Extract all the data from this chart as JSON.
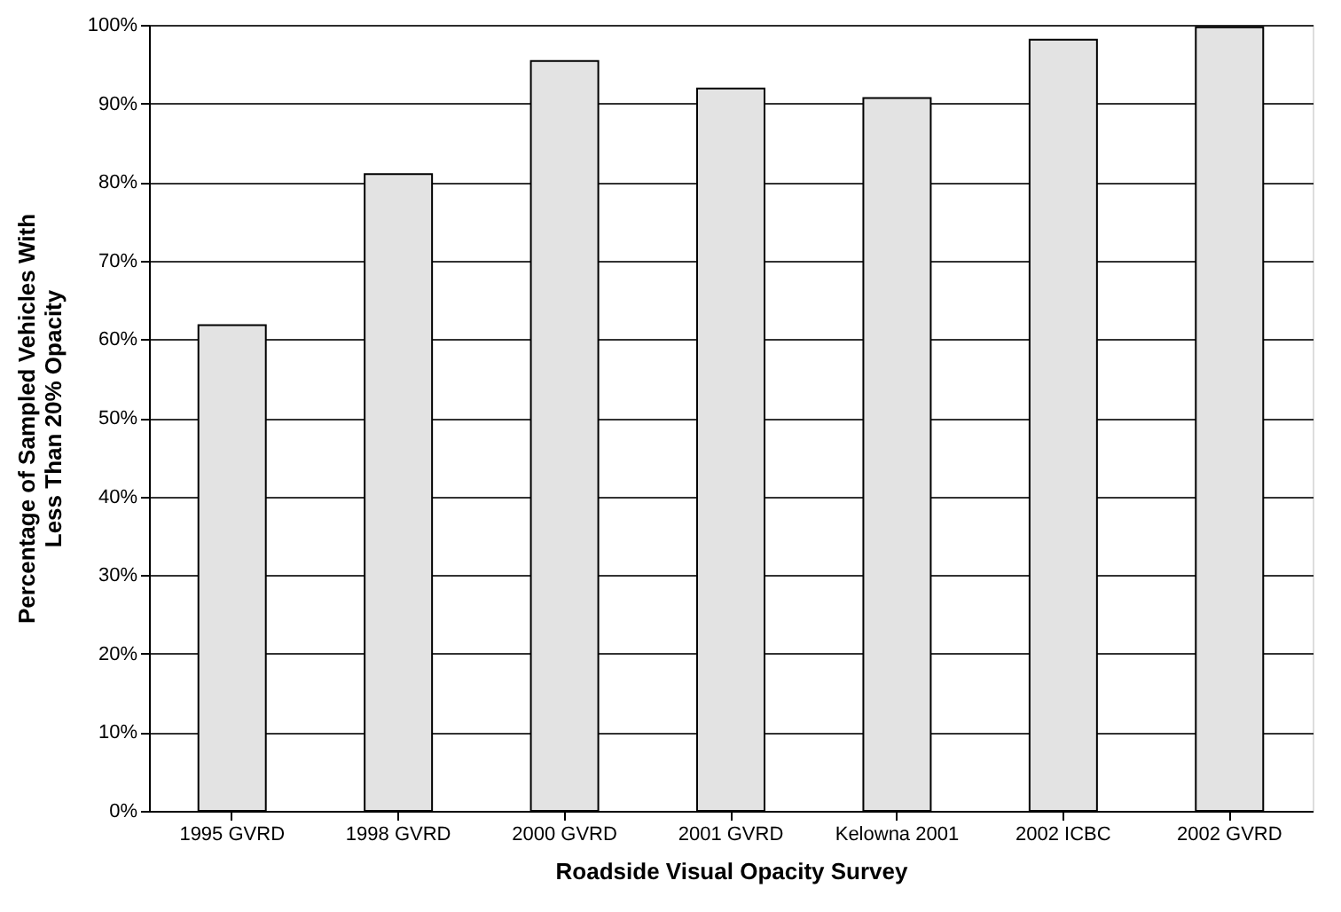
{
  "chart_data": {
    "type": "bar",
    "xlabel": "Roadside Visual Opacity Survey",
    "ylabel": "Percentage of Sampled Vehicles With\nLess Than 20% Opacity",
    "categories": [
      "1995 GVRD",
      "1998 GVRD",
      "2000 GVRD",
      "2001 GVRD",
      "Kelowna 2001",
      "2002 ICBC",
      "2002 GVRD"
    ],
    "values": [
      61.8,
      81.0,
      95.4,
      91.9,
      90.7,
      98.1,
      99.7
    ],
    "color": "#e3e3e3",
    "ylim": [
      0,
      100
    ],
    "yticks": [
      {
        "value": 0,
        "label": "0%"
      },
      {
        "value": 10,
        "label": "10%"
      },
      {
        "value": 20,
        "label": "20%"
      },
      {
        "value": 30,
        "label": "30%"
      },
      {
        "value": 40,
        "label": "40%"
      },
      {
        "value": 50,
        "label": "50%"
      },
      {
        "value": 60,
        "label": "60%"
      },
      {
        "value": 70,
        "label": "70%"
      },
      {
        "value": 80,
        "label": "80%"
      },
      {
        "value": 90,
        "label": "90%"
      },
      {
        "value": 100,
        "label": "100%"
      }
    ],
    "grid": "y"
  }
}
